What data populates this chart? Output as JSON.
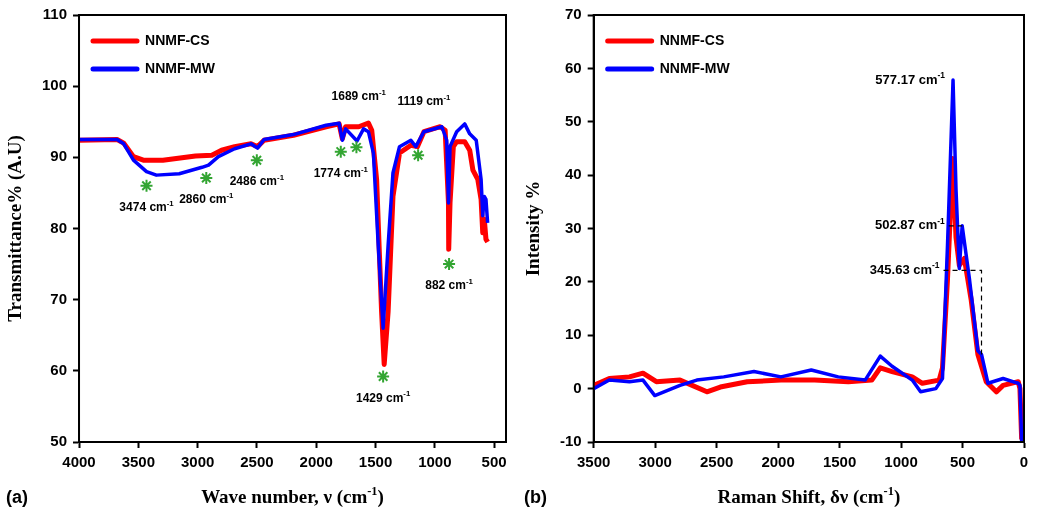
{
  "chart_data": [
    {
      "type": "line",
      "xlabel": "Wave number, ν (cm$^{-1}$)",
      "ylabel": "Transmittance% (A.U)",
      "xlim": [
        4000,
        400
      ],
      "xticks": [
        4000,
        3500,
        3000,
        2500,
        2000,
        1500,
        1000,
        500
      ],
      "ylim": [
        50,
        110
      ],
      "yticks": [
        50,
        60,
        70,
        80,
        90,
        100,
        110
      ],
      "legend": "top left",
      "marker": "none",
      "grid": false,
      "series": [
        {
          "name": "NNMF-CS",
          "color": "#ff0000",
          "x": [
            4000,
            3679,
            3623,
            3541,
            3458,
            3293,
            3018,
            2880,
            2798,
            2688,
            2550,
            2495,
            2440,
            2192,
            1917,
            1807,
            1780,
            1752,
            1642,
            1560,
            1532,
            1491,
            1449,
            1427,
            1394,
            1353,
            1298,
            1202,
            1147,
            1092,
            955,
            913,
            885,
            883,
            872,
            844,
            816,
            748,
            706,
            679,
            638,
            610,
            596,
            583,
            569,
            555
          ],
          "values": [
            92.4,
            92.5,
            92.0,
            90.1,
            89.6,
            89.6,
            90.2,
            90.3,
            91.0,
            91.5,
            91.9,
            91.5,
            92.4,
            93.1,
            94.3,
            94.7,
            92.6,
            94.3,
            94.3,
            94.8,
            93.8,
            86.9,
            68.3,
            60.9,
            68.3,
            84.5,
            90.6,
            91.7,
            91.5,
            93.6,
            94.3,
            93.8,
            83.6,
            77.1,
            83.6,
            91.5,
            92.2,
            92.2,
            91.0,
            88.2,
            86.9,
            84.1,
            79.4,
            81.3,
            78.5,
            78.1
          ]
        },
        {
          "name": "NNMF-MW",
          "color": "#0000ff",
          "x": [
            4000,
            3679,
            3623,
            3541,
            3431,
            3348,
            3155,
            2963,
            2908,
            2825,
            2688,
            2550,
            2495,
            2440,
            2192,
            1917,
            1807,
            1780,
            1752,
            1656,
            1601,
            1560,
            1518,
            1477,
            1436,
            1394,
            1353,
            1298,
            1202,
            1161,
            1092,
            941,
            900,
            885,
            872,
            816,
            748,
            706,
            651,
            610,
            596,
            583,
            569,
            555
          ],
          "values": [
            92.5,
            92.5,
            91.9,
            89.6,
            88.0,
            87.5,
            87.7,
            88.6,
            88.9,
            90.1,
            91.2,
            91.9,
            91.3,
            92.5,
            93.2,
            94.5,
            94.8,
            92.4,
            94.0,
            92.3,
            94.0,
            93.6,
            90.6,
            77.6,
            66.0,
            77.6,
            87.8,
            91.5,
            92.4,
            91.5,
            93.6,
            94.3,
            92.4,
            83.6,
            91.5,
            93.6,
            94.7,
            93.3,
            92.4,
            86.9,
            81.8,
            84.5,
            84.1,
            80.8
          ]
        },
        {
          "type": "scatter",
          "marker": "cross",
          "color": "#33a532",
          "x": [
            3431,
            2927,
            2501,
            1793,
            1661,
            1436,
            1141,
            880
          ],
          "values": [
            86.0,
            87.1,
            89.6,
            90.8,
            91.4,
            59.2,
            90.3,
            75.0
          ]
        }
      ],
      "annotations": [
        {
          "text": "3474 cm$^{-1}$",
          "x": 3431,
          "y": 86.0
        },
        {
          "text": "2860 cm$^{-1}$",
          "x": 2927,
          "y": 87.1
        },
        {
          "text": "2486 cm$^{-1}$",
          "x": 2501,
          "y": 89.6
        },
        {
          "text": "1774 cm$^{-1}$",
          "x": 1793,
          "y": 90.8
        },
        {
          "text": "1689 cm$^{-1}$",
          "x": 1642,
          "y": 94.3
        },
        {
          "text": "1119 cm$^{-1}$",
          "x": 1092,
          "y": 93.6
        },
        {
          "text": "1429 cm$^{-1}$",
          "x": 1436,
          "y": 59.2
        },
        {
          "text": "882 cm$^{-1}$",
          "x": 880,
          "y": 75.0
        },
        "(a)"
      ]
    },
    {
      "type": "line",
      "xlabel": "Raman Shift, δν (cm$^{-1}$)",
      "ylabel": "Intensity %",
      "xlim": [
        3500,
        0
      ],
      "xticks": [
        3500,
        3000,
        2500,
        2000,
        1500,
        1000,
        500,
        0
      ],
      "ylim": [
        -10,
        70
      ],
      "yticks": [
        -10,
        0,
        10,
        20,
        30,
        40,
        50,
        60,
        70
      ],
      "legend": "top left",
      "marker": "none",
      "grid": false,
      "series": [
        {
          "name": "NNMF-CS",
          "color": "#ff0000",
          "x": [
            3500,
            3373,
            3209,
            3099,
            2990,
            2798,
            2579,
            2470,
            2251,
            1977,
            1703,
            1429,
            1238,
            1169,
            1073,
            909,
            827,
            690,
            663,
            622,
            580,
            553,
            526,
            485,
            430,
            375,
            307,
            225,
            170,
            47,
            33,
            19
          ],
          "values": [
            0.6,
            1.9,
            2.2,
            2.9,
            1.3,
            1.6,
            -0.6,
            0.3,
            1.3,
            1.6,
            1.6,
            1.3,
            1.6,
            3.9,
            3.2,
            2.2,
            1.0,
            1.6,
            3.9,
            20.6,
            43.1,
            28.3,
            23.1,
            24.4,
            16.7,
            6.4,
            1.3,
            -0.6,
            0.6,
            1.3,
            0,
            -9.5
          ]
        },
        {
          "name": "NNMF-MW",
          "color": "#0000ff",
          "x": [
            3500,
            3373,
            3209,
            3099,
            3003,
            2798,
            2661,
            2442,
            2196,
            1977,
            1730,
            1511,
            1292,
            1169,
            1073,
            909,
            841,
            717,
            663,
            622,
            577.17,
            553,
            526,
            502.87,
            444,
            375,
            345.63,
            293,
            170,
            47,
            33,
            19
          ],
          "values": [
            0,
            1.6,
            1.3,
            1.6,
            -1.3,
            0.6,
            1.6,
            2.2,
            3.2,
            2.2,
            3.5,
            2.2,
            1.6,
            6.1,
            4.2,
            1.6,
            -0.6,
            0,
            1.9,
            27.0,
            57.8,
            37.3,
            22.5,
            30.5,
            20.6,
            7.1,
            6.4,
            1.0,
            1.9,
            1.0,
            0.6,
            -10
          ]
        }
      ],
      "annotations": [
        {
          "text": "577.17 cm$^{-1}$",
          "x": 577.17,
          "y": 57.8
        },
        {
          "text": "502.87 cm$^{-1}$",
          "x": 502.87,
          "y": 30.5
        },
        {
          "text": "345.63 cm$^{-1}$",
          "x": 345.63,
          "y": 6.4
        },
        "(b)"
      ]
    }
  ]
}
